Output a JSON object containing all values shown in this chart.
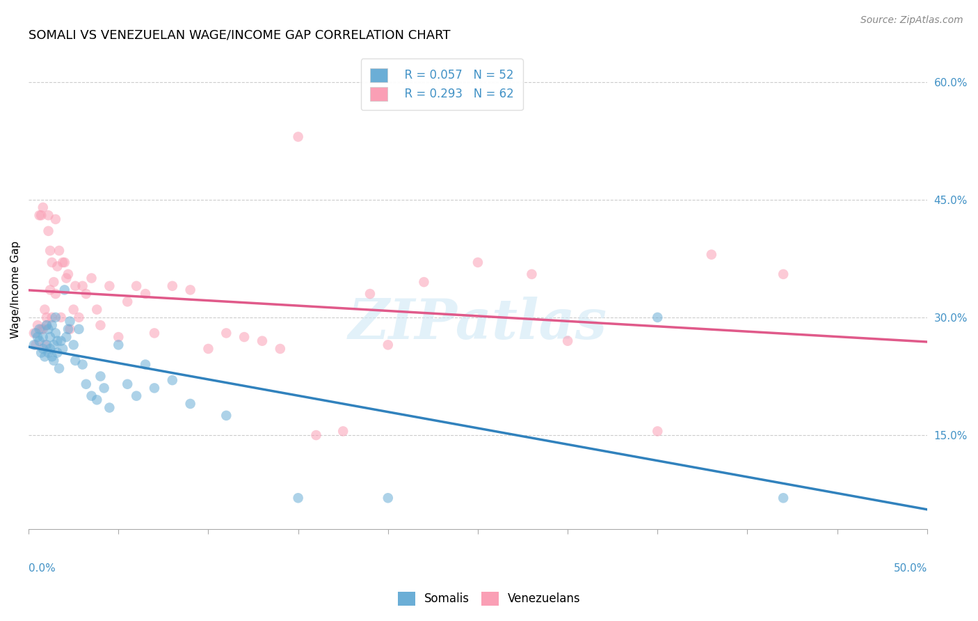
{
  "title": "SOMALI VS VENEZUELAN WAGE/INCOME GAP CORRELATION CHART",
  "source": "Source: ZipAtlas.com",
  "ylabel": "Wage/Income Gap",
  "right_yticks": [
    0.15,
    0.3,
    0.45,
    0.6
  ],
  "right_ytick_labels": [
    "15.0%",
    "30.0%",
    "45.0%",
    "60.0%"
  ],
  "xmin": 0.0,
  "xmax": 0.5,
  "ymin": 0.03,
  "ymax": 0.64,
  "somali_color": "#6baed6",
  "venezuelan_color": "#fa9fb5",
  "somali_line_color": "#3182bd",
  "venezuelan_line_color": "#e05a8a",
  "legend_R_somali": "R = 0.057",
  "legend_N_somali": "N = 52",
  "legend_R_venezuelan": "R = 0.293",
  "legend_N_venezuelan": "N = 62",
  "legend_label_somali": "Somalis",
  "legend_label_venezuelan": "Venezuelans",
  "watermark": "ZIPatlas",
  "somali_x": [
    0.003,
    0.004,
    0.005,
    0.006,
    0.006,
    0.007,
    0.008,
    0.008,
    0.009,
    0.01,
    0.01,
    0.011,
    0.011,
    0.012,
    0.012,
    0.013,
    0.013,
    0.014,
    0.014,
    0.015,
    0.015,
    0.016,
    0.016,
    0.017,
    0.018,
    0.019,
    0.02,
    0.021,
    0.022,
    0.023,
    0.025,
    0.026,
    0.028,
    0.03,
    0.032,
    0.035,
    0.038,
    0.04,
    0.042,
    0.045,
    0.05,
    0.055,
    0.06,
    0.065,
    0.07,
    0.08,
    0.09,
    0.11,
    0.15,
    0.2,
    0.35,
    0.42
  ],
  "somali_y": [
    0.265,
    0.28,
    0.275,
    0.27,
    0.285,
    0.255,
    0.26,
    0.275,
    0.25,
    0.29,
    0.265,
    0.285,
    0.255,
    0.275,
    0.26,
    0.29,
    0.25,
    0.265,
    0.245,
    0.3,
    0.28,
    0.27,
    0.255,
    0.235,
    0.27,
    0.26,
    0.335,
    0.275,
    0.285,
    0.295,
    0.265,
    0.245,
    0.285,
    0.24,
    0.215,
    0.2,
    0.195,
    0.225,
    0.21,
    0.185,
    0.265,
    0.215,
    0.2,
    0.24,
    0.21,
    0.22,
    0.19,
    0.175,
    0.07,
    0.07,
    0.3,
    0.07
  ],
  "venezuelan_x": [
    0.003,
    0.004,
    0.005,
    0.006,
    0.007,
    0.007,
    0.008,
    0.008,
    0.009,
    0.009,
    0.01,
    0.01,
    0.011,
    0.011,
    0.012,
    0.012,
    0.013,
    0.013,
    0.014,
    0.015,
    0.015,
    0.016,
    0.017,
    0.018,
    0.019,
    0.02,
    0.021,
    0.022,
    0.023,
    0.025,
    0.026,
    0.028,
    0.03,
    0.032,
    0.035,
    0.038,
    0.04,
    0.045,
    0.05,
    0.055,
    0.06,
    0.065,
    0.07,
    0.08,
    0.09,
    0.1,
    0.11,
    0.12,
    0.13,
    0.14,
    0.15,
    0.16,
    0.175,
    0.19,
    0.2,
    0.22,
    0.25,
    0.28,
    0.3,
    0.35,
    0.38,
    0.42
  ],
  "venezuelan_y": [
    0.28,
    0.265,
    0.29,
    0.43,
    0.43,
    0.285,
    0.44,
    0.285,
    0.31,
    0.265,
    0.29,
    0.3,
    0.43,
    0.41,
    0.335,
    0.385,
    0.3,
    0.37,
    0.345,
    0.425,
    0.33,
    0.365,
    0.385,
    0.3,
    0.37,
    0.37,
    0.35,
    0.355,
    0.285,
    0.31,
    0.34,
    0.3,
    0.34,
    0.33,
    0.35,
    0.31,
    0.29,
    0.34,
    0.275,
    0.32,
    0.34,
    0.33,
    0.28,
    0.34,
    0.335,
    0.26,
    0.28,
    0.275,
    0.27,
    0.26,
    0.53,
    0.15,
    0.155,
    0.33,
    0.265,
    0.345,
    0.37,
    0.355,
    0.27,
    0.155,
    0.38,
    0.355
  ],
  "title_fontsize": 13,
  "source_fontsize": 10,
  "axis_label_fontsize": 11,
  "tick_fontsize": 11,
  "legend_fontsize": 12,
  "dot_size": 110,
  "dot_alpha": 0.55,
  "line_width": 2.5,
  "background_color": "#ffffff",
  "grid_color": "#cccccc",
  "right_axis_color": "#4292c6"
}
